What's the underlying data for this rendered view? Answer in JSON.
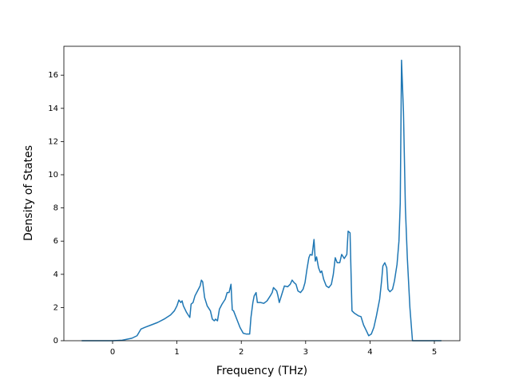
{
  "chart_data": {
    "type": "line",
    "xlabel": "Frequency (THz)",
    "ylabel": "Density of States",
    "xlim": [
      -0.757,
      5.397
    ],
    "ylim": [
      0,
      17.74
    ],
    "xticks": [
      0,
      1,
      2,
      3,
      4,
      5
    ],
    "yticks": [
      0,
      2,
      4,
      6,
      8,
      10,
      12,
      14,
      16
    ],
    "series": [
      {
        "color": "#1f77b4",
        "x": [
          -0.48,
          0.0,
          0.15,
          0.3,
          0.38,
          0.41,
          0.44,
          0.5,
          0.6,
          0.7,
          0.8,
          0.9,
          0.96,
          1.0,
          1.03,
          1.06,
          1.08,
          1.1,
          1.15,
          1.2,
          1.22,
          1.25,
          1.28,
          1.32,
          1.36,
          1.38,
          1.4,
          1.43,
          1.47,
          1.52,
          1.55,
          1.58,
          1.6,
          1.63,
          1.66,
          1.7,
          1.75,
          1.78,
          1.81,
          1.84,
          1.86,
          1.88,
          1.93,
          1.98,
          2.03,
          2.08,
          2.13,
          2.15,
          2.18,
          2.2,
          2.23,
          2.25,
          2.3,
          2.35,
          2.4,
          2.45,
          2.48,
          2.5,
          2.55,
          2.57,
          2.59,
          2.63,
          2.67,
          2.72,
          2.76,
          2.79,
          2.82,
          2.85,
          2.88,
          2.92,
          2.96,
          2.99,
          3.02,
          3.05,
          3.07,
          3.1,
          3.13,
          3.15,
          3.17,
          3.2,
          3.23,
          3.25,
          3.28,
          3.32,
          3.36,
          3.4,
          3.43,
          3.46,
          3.49,
          3.53,
          3.56,
          3.6,
          3.64,
          3.66,
          3.69,
          3.72,
          3.76,
          3.82,
          3.86,
          3.9,
          3.95,
          3.98,
          4.02,
          4.06,
          4.1,
          4.15,
          4.18,
          4.2,
          4.23,
          4.26,
          4.28,
          4.31,
          4.35,
          4.38,
          4.42,
          4.45,
          4.47,
          4.49,
          4.52,
          4.55,
          4.58,
          4.62,
          4.66,
          5.11
        ],
        "values": [
          0,
          0,
          0.03,
          0.15,
          0.3,
          0.5,
          0.7,
          0.8,
          0.95,
          1.1,
          1.3,
          1.55,
          1.8,
          2.1,
          2.45,
          2.3,
          2.4,
          2.1,
          1.7,
          1.4,
          2.2,
          2.3,
          2.7,
          3.0,
          3.3,
          3.65,
          3.55,
          2.6,
          2.1,
          1.8,
          1.3,
          1.2,
          1.3,
          1.2,
          1.9,
          2.2,
          2.5,
          2.9,
          2.9,
          3.4,
          1.85,
          1.8,
          1.3,
          0.8,
          0.45,
          0.4,
          0.4,
          1.4,
          2.3,
          2.7,
          2.9,
          2.3,
          2.3,
          2.25,
          2.4,
          2.7,
          2.9,
          3.2,
          3.0,
          2.7,
          2.3,
          2.8,
          3.3,
          3.25,
          3.4,
          3.65,
          3.5,
          3.4,
          3.0,
          2.9,
          3.1,
          3.5,
          4.3,
          5.0,
          5.2,
          5.15,
          6.1,
          4.8,
          5.05,
          4.4,
          4.1,
          4.2,
          3.7,
          3.3,
          3.2,
          3.4,
          4.0,
          5.0,
          4.7,
          4.7,
          5.2,
          4.95,
          5.2,
          6.6,
          6.5,
          1.8,
          1.65,
          1.5,
          1.45,
          0.95,
          0.55,
          0.3,
          0.4,
          0.8,
          1.5,
          2.5,
          3.6,
          4.5,
          4.7,
          4.4,
          3.1,
          2.95,
          3.1,
          3.6,
          4.6,
          6.0,
          8.3,
          16.9,
          13.8,
          8.0,
          5.0,
          2.0,
          0,
          0
        ]
      }
    ]
  }
}
